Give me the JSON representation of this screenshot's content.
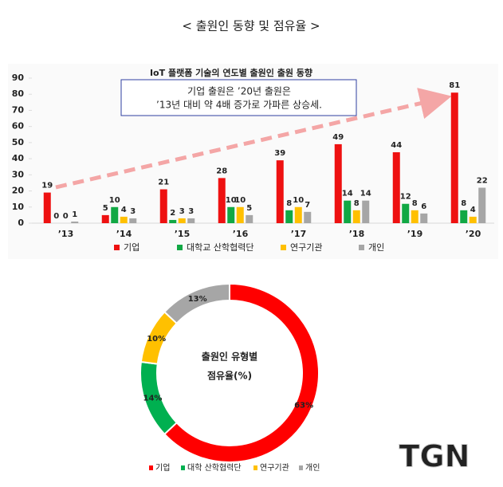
{
  "header": "< 출원인 동향 및 점유율 >",
  "chart_data": [
    {
      "type": "bar",
      "title": "IoT 플랫폼 기술의 연도별 출원인 출원 동향",
      "annotation": [
        "기업 출원은 ’20년 출원은",
        "’13년 대비 약 4배 증가로 가파른 상승세."
      ],
      "categories": [
        "’13",
        "’14",
        "’15",
        "’16",
        "’17",
        "’18",
        "’19",
        "’20"
      ],
      "series": [
        {
          "name": "기업",
          "color": "#ee1111",
          "label_color": "#555555",
          "values": [
            19,
            5,
            21,
            28,
            39,
            49,
            44,
            81
          ]
        },
        {
          "name": "대학교 산학협력단",
          "color": "#11a844",
          "label_color": "#11a844",
          "values": [
            0,
            10,
            2,
            10,
            8,
            14,
            12,
            8
          ]
        },
        {
          "name": "연구기관",
          "color": "#ffc000",
          "label_color": "#f0b400",
          "values": [
            0,
            4,
            3,
            10,
            10,
            8,
            8,
            4
          ]
        },
        {
          "name": "개인",
          "color": "#a6a6a6",
          "label_color": "#dd2222",
          "values": [
            1,
            3,
            3,
            5,
            7,
            14,
            6,
            22
          ]
        }
      ],
      "ylim": [
        0,
        90
      ],
      "yticks": [
        0,
        10,
        20,
        30,
        40,
        50,
        60,
        70,
        80,
        90
      ],
      "grid": false
    },
    {
      "type": "donut",
      "center_text": [
        "출원인 유형별",
        "점유율(%)"
      ],
      "categories": [
        "기업",
        "대학 산학협력단",
        "연구기관",
        "개인"
      ],
      "values": [
        63,
        14,
        10,
        13
      ],
      "value_labels": [
        "63%",
        "14%",
        "10%",
        "13%"
      ],
      "colors": [
        "#ff0000",
        "#00b050",
        "#ffc000",
        "#a6a6a6"
      ]
    }
  ],
  "watermark": "TGN"
}
